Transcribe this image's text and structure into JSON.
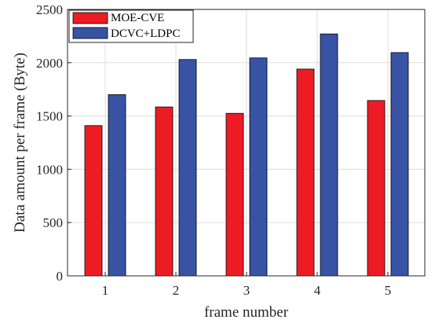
{
  "chart_data": {
    "type": "bar",
    "title": "",
    "xlabel": "frame number",
    "ylabel": "Data amount per frame (Byte)",
    "categories": [
      "1",
      "2",
      "3",
      "4",
      "5"
    ],
    "ylim": [
      0,
      2500
    ],
    "yticks": [
      0,
      500,
      1000,
      1500,
      2000,
      2500
    ],
    "grid": true,
    "legend_position": "top-left",
    "series": [
      {
        "name": "MOE-CVE",
        "color": "#ED1C24",
        "values": [
          1410,
          1585,
          1525,
          1940,
          1645
        ]
      },
      {
        "name": "DCVC+LDPC",
        "color": "#3953A4",
        "values": [
          1700,
          2030,
          2045,
          2270,
          2095
        ]
      }
    ]
  }
}
